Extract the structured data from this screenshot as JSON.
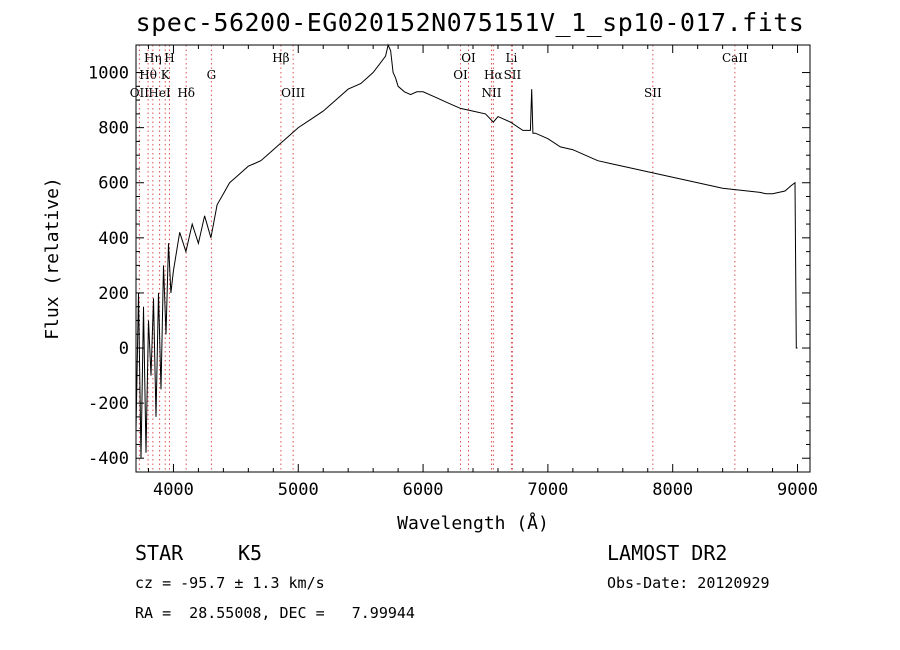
{
  "chart_data": {
    "type": "line",
    "title": "spec-56200-EG020152N075151V_1_sp10-017.fits",
    "xlabel": "Wavelength (Å)",
    "ylabel": "Flux (relative)",
    "xlim": [
      3700,
      9100
    ],
    "ylim": [
      -450,
      1100
    ],
    "x_ticks": [
      4000,
      5000,
      6000,
      7000,
      8000,
      9000
    ],
    "y_ticks": [
      -400,
      -200,
      0,
      200,
      400,
      600,
      800,
      1000
    ],
    "x_tick_labels": [
      "4000",
      "5000",
      "6000",
      "7000",
      "8000",
      "9000"
    ],
    "y_tick_labels": [
      "-400",
      "-200",
      "0",
      "200",
      "400",
      "600",
      "800",
      "1000"
    ],
    "grid": false,
    "series": [
      {
        "color": "#000000",
        "x": [
          3700,
          3720,
          3740,
          3760,
          3780,
          3800,
          3820,
          3840,
          3860,
          3880,
          3900,
          3920,
          3940,
          3960,
          3980,
          4000,
          4050,
          4100,
          4150,
          4200,
          4250,
          4300,
          4350,
          4400,
          4450,
          4500,
          4550,
          4600,
          4650,
          4700,
          4750,
          4800,
          4850,
          4900,
          4950,
          5000,
          5100,
          5200,
          5300,
          5400,
          5500,
          5550,
          5600,
          5650,
          5700,
          5720,
          5740,
          5760,
          5780,
          5800,
          5850,
          5900,
          5950,
          6000,
          6100,
          6200,
          6300,
          6400,
          6500,
          6563,
          6600,
          6700,
          6800,
          6860,
          6870,
          6880,
          6900,
          7000,
          7100,
          7200,
          7300,
          7400,
          7500,
          7600,
          7700,
          7800,
          7900,
          8000,
          8100,
          8200,
          8300,
          8400,
          8500,
          8600,
          8700,
          8750,
          8800,
          8900,
          8950,
          8980,
          8990,
          9000
        ],
        "y": [
          -300,
          200,
          -400,
          150,
          -380,
          100,
          -100,
          180,
          -250,
          200,
          -150,
          300,
          50,
          380,
          200,
          280,
          420,
          350,
          450,
          380,
          480,
          400,
          520,
          560,
          600,
          620,
          640,
          660,
          670,
          680,
          700,
          720,
          740,
          760,
          780,
          800,
          830,
          860,
          900,
          940,
          960,
          980,
          1000,
          1030,
          1060,
          1100,
          1080,
          1000,
          980,
          950,
          930,
          920,
          930,
          930,
          910,
          890,
          870,
          860,
          850,
          820,
          840,
          820,
          790,
          790,
          940,
          780,
          780,
          760,
          730,
          720,
          700,
          680,
          670,
          660,
          650,
          640,
          630,
          620,
          610,
          600,
          590,
          580,
          575,
          570,
          565,
          560,
          560,
          570,
          590,
          600,
          0,
          0
        ]
      }
    ],
    "annotations": [
      {
        "label": "OII",
        "x": 3727
      },
      {
        "label": "Hθ",
        "x": 3797
      },
      {
        "label": "Hη",
        "x": 3835
      },
      {
        "label": "HeI",
        "x": 3889
      },
      {
        "label": "K",
        "x": 3934
      },
      {
        "label": "H",
        "x": 3968
      },
      {
        "label": "Hδ",
        "x": 4102
      },
      {
        "label": "G",
        "x": 4304
      },
      {
        "label": "Hβ",
        "x": 4861
      },
      {
        "label": "OIII",
        "x": 4959
      },
      {
        "label": "OI",
        "x": 6300
      },
      {
        "label": "OI",
        "x": 6364
      },
      {
        "label": "NII",
        "x": 6548
      },
      {
        "label": "Hα",
        "x": 6563
      },
      {
        "label": "Li",
        "x": 6708
      },
      {
        "label": "SII",
        "x": 6716
      },
      {
        "label": "SII",
        "x": 7841
      },
      {
        "label": "CaII",
        "x": 8498
      }
    ],
    "line_marker_color": "#e05050"
  },
  "info": {
    "class_label": "STAR",
    "subclass_label": "K5",
    "survey_label": "LAMOST DR2",
    "redshift_text": "cz = -95.7 ± 1.3 km/s",
    "obsdate_text": "Obs-Date: 20120929",
    "coords_text": "RA =  28.55008, DEC =   7.99944"
  }
}
